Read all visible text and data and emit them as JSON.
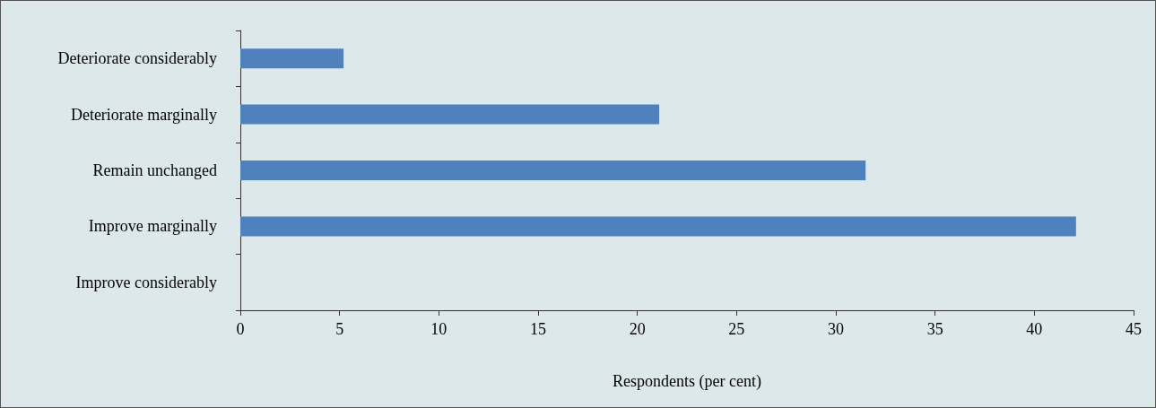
{
  "chart_data": {
    "type": "bar",
    "orientation": "horizontal",
    "categories": [
      "Deteriorate considerably",
      "Deteriorate marginally",
      "Remain unchanged",
      "Improve marginally",
      "Improve considerably"
    ],
    "values": [
      5.2,
      21.1,
      31.5,
      42.1,
      0
    ],
    "color": "#4f81bd",
    "xlabel": "Respondents (per cent)",
    "xlim": [
      0,
      45
    ],
    "xticks": [
      0,
      5,
      10,
      15,
      20,
      25,
      30,
      35,
      40,
      45
    ]
  }
}
